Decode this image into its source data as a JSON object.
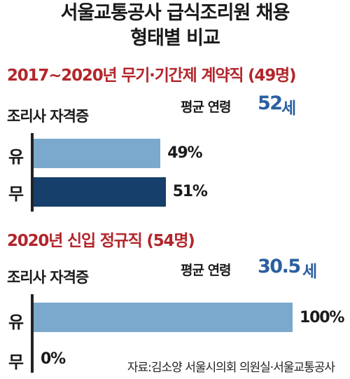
{
  "title_line1": "서울교통공사 급식조리원 채용",
  "title_line2": "형태별 비교",
  "source": "자료:김소양 서울시의회 의원실·서울교통공사",
  "chart_data": [
    {
      "type": "bar",
      "orientation": "horizontal",
      "title": "2017~2020년 무기·기간제 계약직 (49명)",
      "ylabel": "조리사 자격증",
      "avg_label": "평균 연령",
      "avg_value": "52",
      "avg_unit": "세",
      "categories": [
        "유",
        "무"
      ],
      "values": [
        49,
        51
      ],
      "value_labels": [
        "49%",
        "51%"
      ],
      "unit": "%",
      "xlim": [
        0,
        100
      ],
      "colors": [
        "#7aa9cd",
        "#173f6b"
      ]
    },
    {
      "type": "bar",
      "orientation": "horizontal",
      "title": "2020년 신입 정규직 (54명)",
      "ylabel": "조리사 자격증",
      "avg_label": "평균 연령",
      "avg_value": "30.5",
      "avg_unit": "세",
      "categories": [
        "유",
        "무"
      ],
      "values": [
        100,
        0
      ],
      "value_labels": [
        "100%",
        "0%"
      ],
      "unit": "%",
      "xlim": [
        0,
        100
      ],
      "colors": [
        "#7aa9cd",
        "#173f6b"
      ]
    }
  ]
}
